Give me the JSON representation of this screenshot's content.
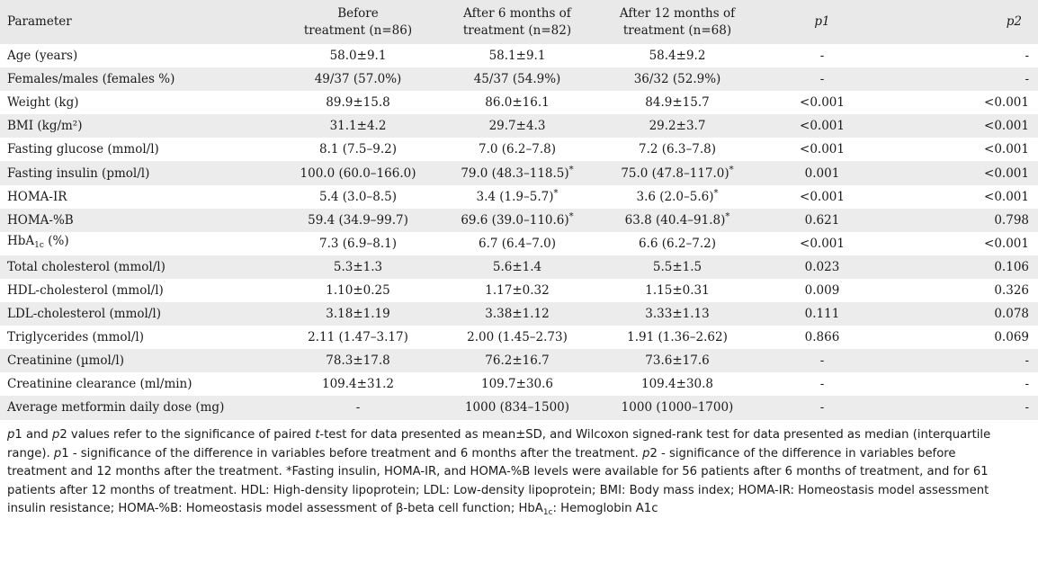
{
  "header": {
    "parameter": "Parameter",
    "before_l1": "Before",
    "before_l2": "treatment (n=86)",
    "m6_l1": "After 6 months of",
    "m6_l2": "treatment (n=82)",
    "m12_l1": "After 12 months of",
    "m12_l2": "treatment (n=68)",
    "p1": "p1",
    "p2": "p2"
  },
  "rows": [
    {
      "param": "Age (years)",
      "before": "58.0±9.1",
      "m6": "58.1±9.1",
      "m12": "58.4±9.2",
      "p1": "-",
      "p2": "-"
    },
    {
      "param": "Females/males (females %)",
      "before": "49/37 (57.0%)",
      "m6": "45/37 (54.9%)",
      "m12": "36/32 (52.9%)",
      "p1": "-",
      "p2": "-"
    },
    {
      "param": "Weight (kg)",
      "before": "89.9±15.8",
      "m6": "86.0±16.1",
      "m12": "84.9±15.7",
      "p1": "<0.001",
      "p2": "<0.001"
    },
    {
      "param": "BMI (kg/m²)",
      "before": "31.1±4.2",
      "m6": "29.7±4.3",
      "m12": "29.2±3.7",
      "p1": "<0.001",
      "p2": "<0.001"
    },
    {
      "param": "Fasting glucose (mmol/l)",
      "before": "8.1 (7.5–9.2)",
      "m6": "7.0 (6.2–7.8)",
      "m12": "7.2 (6.3–7.8)",
      "p1": "<0.001",
      "p2": "<0.001"
    },
    {
      "param": "Fasting insulin (pmol/l)",
      "before": "100.0 (60.0–166.0)",
      "m6": "79.0 (48.3–118.5)",
      "m12": "75.0 (47.8–117.0)",
      "p1": "0.001",
      "p2": "<0.001"
    },
    {
      "param": "HOMA-IR",
      "before": "5.4 (3.0–8.5)",
      "m6": "3.4 (1.9–5.7)",
      "m12": "3.6 (2.0–5.6)",
      "p1": "<0.001",
      "p2": "<0.001"
    },
    {
      "param": "HOMA-%B",
      "before": "59.4 (34.9–99.7)",
      "m6": "69.6 (39.0–110.6)",
      "m12": "63.8 (40.4–91.8)",
      "p1": "0.621",
      "p2": "0.798"
    },
    {
      "param": "HbA",
      "param_sub": "1c",
      "param_tail": " (%)",
      "before": "7.3 (6.9–8.1)",
      "m6": "6.7 (6.4–7.0)",
      "m12": "6.6 (6.2–7.2)",
      "p1": "<0.001",
      "p2": "<0.001"
    },
    {
      "param": "Total cholesterol (mmol/l)",
      "before": "5.3±1.3",
      "m6": "5.6±1.4",
      "m12": "5.5±1.5",
      "p1": "0.023",
      "p2": "0.106"
    },
    {
      "param": "HDL-cholesterol (mmol/l)",
      "before": "1.10±0.25",
      "m6": "1.17±0.32",
      "m12": "1.15±0.31",
      "p1": "0.009",
      "p2": "0.326"
    },
    {
      "param": "LDL-cholesterol (mmol/l)",
      "before": "3.18±1.19",
      "m6": "3.38±1.12",
      "m12": "3.33±1.13",
      "p1": "0.111",
      "p2": "0.078"
    },
    {
      "param": "Triglycerides (mmol/l)",
      "before": "2.11 (1.47–3.17)",
      "m6": "2.00 (1.45–2.73)",
      "m12": "1.91 (1.36–2.62)",
      "p1": "0.866",
      "p2": "0.069"
    },
    {
      "param": "Creatinine (µmol/l)",
      "before": "78.3±17.8",
      "m6": "76.2±16.7",
      "m12": "73.6±17.6",
      "p1": "-",
      "p2": "-"
    },
    {
      "param": "Creatinine clearance (ml/min)",
      "before": "109.4±31.2",
      "m6": "109.7±30.6",
      "m12": "109.4±30.8",
      "p1": "-",
      "p2": "-"
    },
    {
      "param": "Average metformin daily dose (mg)",
      "before": "-",
      "m6": "1000 (834–1500)",
      "m12": "1000 (1000–1700)",
      "p1": "-",
      "p2": "-"
    }
  ],
  "asterisk": "*",
  "footnote": {
    "s1": "p",
    "s2": "1 and ",
    "s3": "p",
    "s4": "2 values refer to the significance of paired ",
    "s5": "t",
    "s6": "-test for data presented as mean±SD, and Wilcoxon signed-rank test for data presented as median (interquartile range). ",
    "s7": "p",
    "s8": "1 - significance of the difference in variables before treatment and 6 months after the treatment. ",
    "s9": "p",
    "s10": "2 - significance of the difference in variables before treatment and 12 months after the treatment. *Fasting insulin, HOMA-IR, and HOMA-%B levels were available for 56 patients after 6 months of treatment, and for 61 patients after 12 months of treatment. HDL: High-density lipoprotein; LDL: Low-density lipoprotein; BMI: Body mass index; HOMA-IR: Homeostasis model assessment insulin resistance; HOMA-%B: Homeostasis model assessment of β-beta cell function; HbA",
    "s11": "1c",
    "s12": ": Hemoglobin A1c"
  }
}
